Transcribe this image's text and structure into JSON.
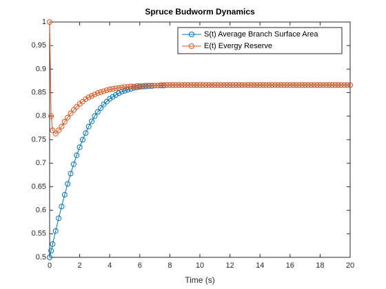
{
  "chart_data": {
    "type": "line",
    "title": "Spruce Budworm Dynamics",
    "x_label": "Time (s)",
    "x": [
      0,
      0.1,
      0.2,
      0.4,
      0.6,
      0.8,
      1,
      1.2,
      1.4,
      1.6,
      1.8,
      2,
      2.2,
      2.4,
      2.6,
      2.8,
      3,
      3.2,
      3.4,
      3.6,
      3.8,
      4,
      4.2,
      4.4,
      4.6,
      4.8,
      5,
      5.2,
      5.4,
      5.6,
      5.8,
      6,
      6.2,
      6.4,
      6.6,
      6.8,
      7,
      7.2,
      7.4,
      7.6,
      7.8,
      8,
      8.2,
      8.4,
      8.6,
      8.8,
      9,
      9.2,
      9.4,
      9.6,
      9.8,
      10,
      10.2,
      10.4,
      10.6,
      10.8,
      11,
      11.2,
      11.4,
      11.6,
      11.8,
      12,
      12.2,
      12.4,
      12.6,
      12.8,
      13,
      13.2,
      13.4,
      13.6,
      13.8,
      14,
      14.2,
      14.4,
      14.6,
      14.8,
      15,
      15.2,
      15.4,
      15.6,
      15.8,
      16,
      16.2,
      16.4,
      16.6,
      16.8,
      17,
      17.2,
      17.4,
      17.6,
      17.8,
      18,
      18.2,
      18.4,
      18.6,
      18.8,
      19,
      19.2,
      19.4,
      19.6,
      19.8,
      20
    ],
    "series": [
      {
        "name": "S(t) Average Branch Surface Area",
        "color": "#0072bd",
        "values": [
          0.5,
          0.514,
          0.528,
          0.556,
          0.583,
          0.608,
          0.633,
          0.656,
          0.678,
          0.698,
          0.717,
          0.734,
          0.75,
          0.764,
          0.778,
          0.789,
          0.8,
          0.809,
          0.817,
          0.825,
          0.831,
          0.837,
          0.841,
          0.845,
          0.849,
          0.852,
          0.854,
          0.856,
          0.858,
          0.86,
          0.861,
          0.862,
          0.863,
          0.863,
          0.864,
          0.864,
          0.865,
          0.865,
          0.865,
          0.865,
          0.866,
          0.866,
          0.866,
          0.866,
          0.866,
          0.866,
          0.866,
          0.866,
          0.866,
          0.866,
          0.866,
          0.866,
          0.866,
          0.866,
          0.866,
          0.866,
          0.866,
          0.866,
          0.866,
          0.866,
          0.866,
          0.866,
          0.866,
          0.866,
          0.866,
          0.866,
          0.866,
          0.866,
          0.866,
          0.866,
          0.866,
          0.866,
          0.866,
          0.866,
          0.866,
          0.866,
          0.866,
          0.866,
          0.866,
          0.866,
          0.866,
          0.866,
          0.866,
          0.866,
          0.866,
          0.866,
          0.866,
          0.866,
          0.866,
          0.866,
          0.866,
          0.866,
          0.866,
          0.866,
          0.866,
          0.866,
          0.866,
          0.866,
          0.866,
          0.866,
          0.866,
          0.866
        ]
      },
      {
        "name": "E(t) Evergy Reserve",
        "color": "#d95319",
        "values": [
          1,
          0.8,
          0.77,
          0.763,
          0.77,
          0.778,
          0.788,
          0.797,
          0.806,
          0.813,
          0.82,
          0.826,
          0.831,
          0.836,
          0.84,
          0.843,
          0.846,
          0.849,
          0.851,
          0.853,
          0.855,
          0.857,
          0.858,
          0.859,
          0.86,
          0.861,
          0.862,
          0.862,
          0.863,
          0.863,
          0.864,
          0.864,
          0.864,
          0.865,
          0.865,
          0.865,
          0.865,
          0.865,
          0.866,
          0.866,
          0.866,
          0.866,
          0.866,
          0.866,
          0.866,
          0.866,
          0.866,
          0.866,
          0.866,
          0.866,
          0.866,
          0.866,
          0.866,
          0.866,
          0.866,
          0.866,
          0.866,
          0.866,
          0.866,
          0.866,
          0.866,
          0.866,
          0.866,
          0.866,
          0.866,
          0.866,
          0.866,
          0.866,
          0.866,
          0.866,
          0.866,
          0.866,
          0.866,
          0.866,
          0.866,
          0.866,
          0.866,
          0.866,
          0.866,
          0.866,
          0.866,
          0.866,
          0.866,
          0.866,
          0.866,
          0.866,
          0.866,
          0.866,
          0.866,
          0.866,
          0.866,
          0.866,
          0.866,
          0.866,
          0.866,
          0.866,
          0.866,
          0.866,
          0.866,
          0.866,
          0.866,
          0.866
        ]
      }
    ],
    "xlim": [
      0,
      20
    ],
    "xticks": [
      0,
      2,
      4,
      6,
      8,
      10,
      12,
      14,
      16,
      18,
      20
    ],
    "ylim": [
      0.5,
      1
    ],
    "yticks": [
      0.5,
      0.55,
      0.6,
      0.65,
      0.7,
      0.75,
      0.8,
      0.85,
      0.9,
      0.95,
      1
    ],
    "grid": false,
    "legend": "upper right",
    "marker": "circle"
  }
}
